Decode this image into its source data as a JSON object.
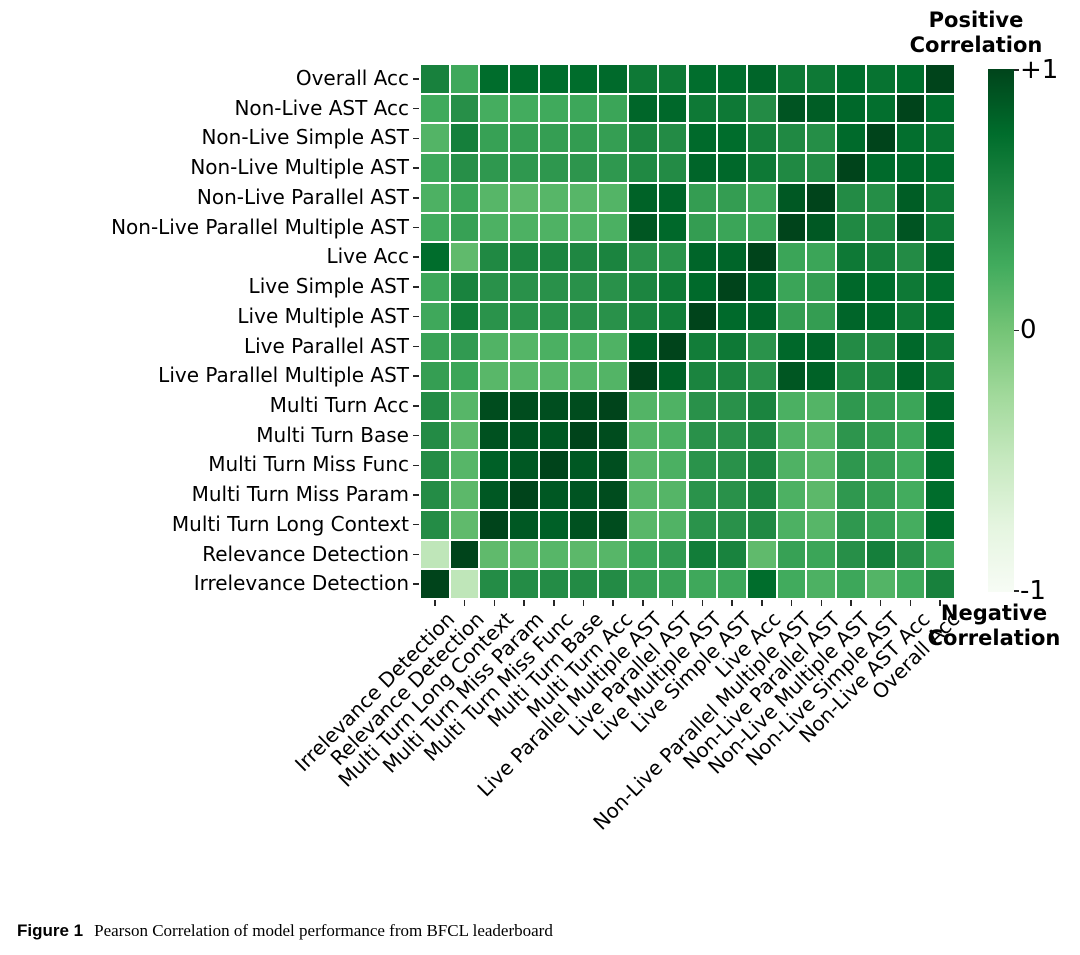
{
  "figure": {
    "caption_label": "Figure 1",
    "caption_text": "Pearson Correlation of model performance from BFCL leaderboard"
  },
  "chart_data": {
    "type": "heatmap",
    "title": "",
    "colormap": "Greens",
    "colormap_anchors": [
      "#f7fcf5",
      "#e5f5e0",
      "#c7e9c0",
      "#a1d99b",
      "#74c476",
      "#41ab5d",
      "#238b45",
      "#006d2c",
      "#00441b"
    ],
    "value_range": [
      -1,
      1
    ],
    "grid_line_color": "#ffffff",
    "grid": true,
    "legend_position": "right",
    "y_labels": [
      "Overall Acc",
      "Non-Live AST Acc",
      "Non-Live Simple AST",
      "Non-Live Multiple AST",
      "Non-Live Parallel AST",
      "Non-Live Parallel Multiple AST",
      "Live Acc",
      "Live Simple AST",
      "Live Multiple AST",
      "Live Parallel AST",
      "Live Parallel Multiple AST",
      "Multi Turn Acc",
      "Multi Turn Base",
      "Multi Turn Miss Func",
      "Multi Turn Miss Param",
      "Multi Turn Long Context",
      "Relevance Detection",
      "Irrelevance Detection"
    ],
    "x_labels": [
      "Irrelevance Detection",
      "Relevance Detection",
      "Multi Turn Long Context",
      "Multi Turn Miss Param",
      "Multi Turn Miss Func",
      "Multi Turn Base",
      "Multi Turn Acc",
      "Live Parallel Multiple AST",
      "Live Parallel AST",
      "Live Multiple AST",
      "Live Simple AST",
      "Live Acc",
      "Non-Live Parallel Multiple AST",
      "Non-Live Parallel AST",
      "Non-Live Multiple AST",
      "Non-Live Simple AST",
      "Non-Live AST Acc",
      "Overall Acc"
    ],
    "matrix_note": "rows and columns both follow y_labels order; displayed x order is x_labels (reversed)",
    "matrix": [
      [
        1.0,
        0.74,
        0.7,
        0.74,
        0.65,
        0.65,
        0.8,
        0.74,
        0.74,
        0.65,
        0.65,
        0.77,
        0.75,
        0.75,
        0.75,
        0.75,
        0.27,
        0.58
      ],
      [
        0.74,
        1.0,
        0.73,
        0.78,
        0.85,
        0.9,
        0.5,
        0.65,
        0.65,
        0.78,
        0.79,
        0.3,
        0.28,
        0.26,
        0.24,
        0.23,
        0.47,
        0.26
      ],
      [
        0.7,
        0.73,
        1.0,
        0.77,
        0.48,
        0.52,
        0.6,
        0.75,
        0.77,
        0.5,
        0.55,
        0.35,
        0.37,
        0.35,
        0.35,
        0.33,
        0.6,
        0.16
      ],
      [
        0.74,
        0.78,
        0.77,
        1.0,
        0.5,
        0.52,
        0.65,
        0.78,
        0.8,
        0.5,
        0.52,
        0.4,
        0.42,
        0.41,
        0.4,
        0.4,
        0.47,
        0.28
      ],
      [
        0.65,
        0.85,
        0.48,
        0.5,
        1.0,
        0.88,
        0.3,
        0.36,
        0.36,
        0.8,
        0.82,
        0.16,
        0.14,
        0.14,
        0.12,
        0.14,
        0.3,
        0.19
      ],
      [
        0.65,
        0.9,
        0.52,
        0.52,
        0.88,
        1.0,
        0.3,
        0.3,
        0.36,
        0.78,
        0.89,
        0.2,
        0.18,
        0.18,
        0.19,
        0.19,
        0.33,
        0.25
      ],
      [
        0.8,
        0.5,
        0.6,
        0.65,
        0.3,
        0.3,
        1.0,
        0.8,
        0.8,
        0.44,
        0.45,
        0.56,
        0.53,
        0.55,
        0.55,
        0.52,
        0.1,
        0.75
      ],
      [
        0.74,
        0.65,
        0.75,
        0.78,
        0.36,
        0.3,
        0.8,
        1.0,
        0.77,
        0.65,
        0.55,
        0.45,
        0.45,
        0.45,
        0.45,
        0.45,
        0.57,
        0.28
      ],
      [
        0.74,
        0.65,
        0.77,
        0.8,
        0.36,
        0.36,
        0.8,
        0.77,
        1.0,
        0.62,
        0.56,
        0.45,
        0.45,
        0.44,
        0.44,
        0.44,
        0.62,
        0.27
      ],
      [
        0.65,
        0.78,
        0.5,
        0.5,
        0.8,
        0.78,
        0.44,
        0.65,
        0.62,
        1.0,
        0.82,
        0.18,
        0.2,
        0.2,
        0.15,
        0.17,
        0.38,
        0.32
      ],
      [
        0.65,
        0.79,
        0.55,
        0.52,
        0.82,
        0.89,
        0.45,
        0.55,
        0.56,
        0.82,
        1.0,
        0.16,
        0.16,
        0.15,
        0.14,
        0.13,
        0.3,
        0.35
      ],
      [
        0.77,
        0.3,
        0.35,
        0.4,
        0.16,
        0.2,
        0.56,
        0.45,
        0.45,
        0.18,
        0.16,
        1.0,
        0.95,
        0.94,
        0.95,
        0.95,
        0.14,
        0.5
      ],
      [
        0.75,
        0.28,
        0.37,
        0.42,
        0.14,
        0.18,
        0.53,
        0.45,
        0.45,
        0.2,
        0.16,
        0.95,
        1.0,
        0.88,
        0.9,
        0.92,
        0.12,
        0.5
      ],
      [
        0.75,
        0.26,
        0.35,
        0.41,
        0.14,
        0.18,
        0.55,
        0.45,
        0.44,
        0.2,
        0.15,
        0.94,
        0.88,
        1.0,
        0.88,
        0.83,
        0.14,
        0.49
      ],
      [
        0.75,
        0.24,
        0.35,
        0.4,
        0.12,
        0.19,
        0.55,
        0.45,
        0.44,
        0.15,
        0.14,
        0.95,
        0.9,
        0.88,
        1.0,
        0.88,
        0.12,
        0.49
      ],
      [
        0.75,
        0.23,
        0.33,
        0.4,
        0.14,
        0.19,
        0.52,
        0.45,
        0.44,
        0.17,
        0.13,
        0.95,
        0.92,
        0.83,
        0.88,
        1.0,
        0.1,
        0.49
      ],
      [
        0.27,
        0.47,
        0.6,
        0.47,
        0.3,
        0.33,
        0.1,
        0.57,
        0.62,
        0.38,
        0.3,
        0.14,
        0.12,
        0.14,
        0.12,
        0.1,
        1.0,
        -0.45
      ],
      [
        0.58,
        0.26,
        0.16,
        0.28,
        0.19,
        0.25,
        0.75,
        0.28,
        0.27,
        0.32,
        0.35,
        0.5,
        0.5,
        0.49,
        0.49,
        0.49,
        -0.45,
        1.0
      ]
    ],
    "colorbar": {
      "positive_label": "Positive\nCorrelation",
      "negative_label": "Negative\nCorrelation",
      "tick_labels": [
        "+1",
        "0",
        "-1"
      ],
      "tick_values": [
        1,
        0,
        -1
      ]
    }
  }
}
